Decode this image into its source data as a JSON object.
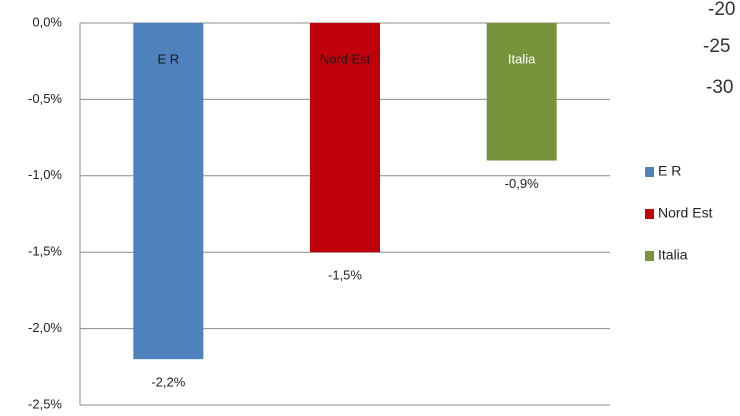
{
  "chart_data": {
    "type": "bar",
    "categories": [
      "E R",
      "Nord Est",
      "Italia"
    ],
    "series": [
      {
        "name": "E R",
        "color": "#4f81bd",
        "values": [
          -2.2,
          null,
          null
        ],
        "value_labels": [
          "-2,2%",
          null,
          null
        ]
      },
      {
        "name": "Nord Est",
        "color": "#c0000b",
        "values": [
          null,
          -1.5,
          null
        ],
        "value_labels": [
          null,
          "-1,5%",
          null
        ]
      },
      {
        "name": "Italia",
        "color": "#77933c",
        "values": [
          null,
          null,
          -0.9
        ],
        "value_labels": [
          null,
          null,
          "-0,9%"
        ]
      }
    ],
    "ylim": [
      -2.5,
      0
    ],
    "yticks": [
      {
        "value": 0,
        "label": "0,0%"
      },
      {
        "value": -0.5,
        "label": "-0,5%"
      },
      {
        "value": -1,
        "label": "-1,0%"
      },
      {
        "value": -1.5,
        "label": "-1,5%"
      },
      {
        "value": -2,
        "label": "-2,0%"
      },
      {
        "value": -2.5,
        "label": "-2,5%"
      }
    ],
    "grid": true,
    "legend": "right"
  },
  "background_text": [
    "-20",
    "-25",
    "-30"
  ]
}
